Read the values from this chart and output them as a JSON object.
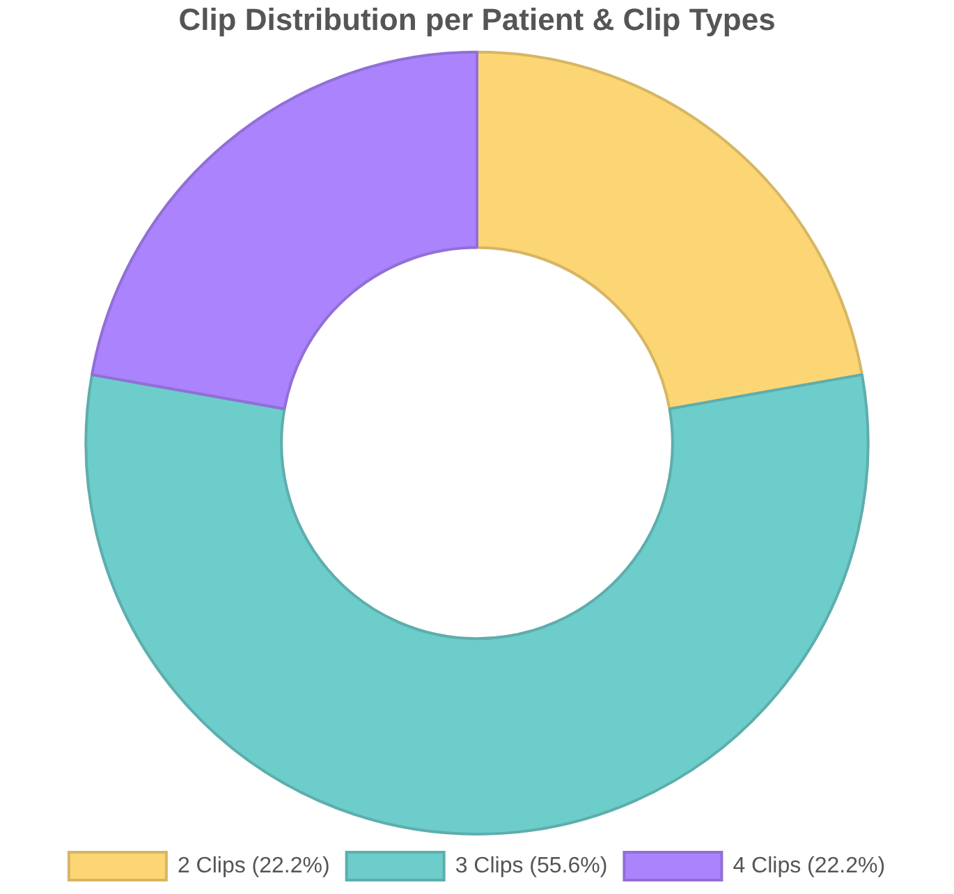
{
  "chart_data": {
    "type": "donut",
    "title": "Clip Distribution per Patient & Clip Types",
    "categories": [
      "2 Clips (22.2%)",
      "3 Clips (55.6%)",
      "4 Clips (22.2%)"
    ],
    "values": [
      22.2,
      55.6,
      22.2
    ],
    "colors": [
      "#fcd675",
      "#6dcdcb",
      "#ab83fd"
    ],
    "legend": "bottom"
  }
}
